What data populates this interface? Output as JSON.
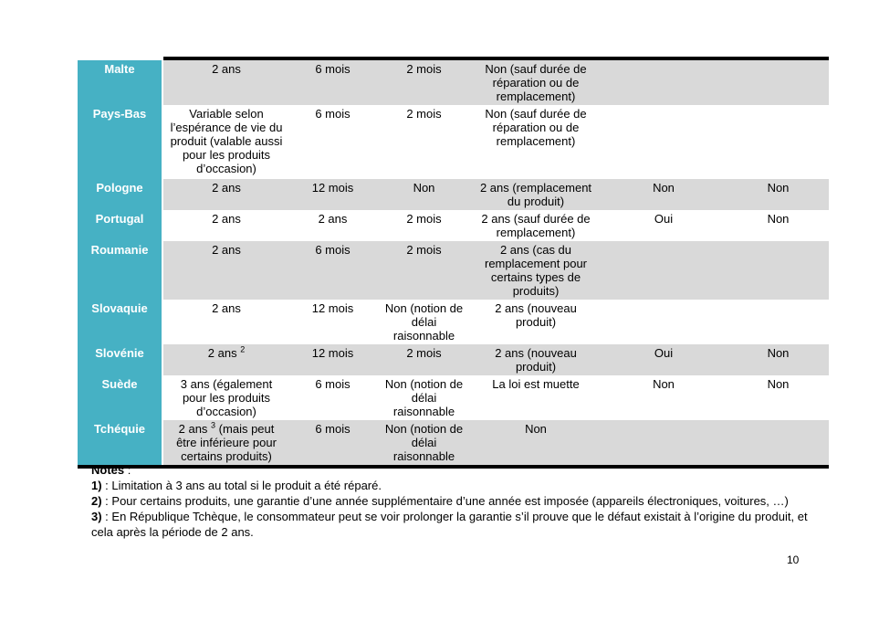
{
  "document": {
    "page_number": "10"
  },
  "colors": {
    "accent_teal": "#46b1c4",
    "row_shade": "#d9d9d9",
    "border": "#000000"
  },
  "table": {
    "rows": [
      {
        "country": "Malte",
        "cells": [
          "2 ans",
          "6 mois",
          "2 mois",
          "Non (sauf durée de réparation ou de remplacement)",
          "",
          ""
        ]
      },
      {
        "country": "Pays-Bas",
        "cells": [
          "Variable selon l’espérance de vie du produit (valable aussi pour les produits d’occasion)",
          "6 mois",
          "2 mois",
          "Non (sauf durée de réparation ou de remplacement)",
          "",
          ""
        ]
      },
      {
        "country": "Pologne",
        "cells": [
          "2 ans",
          "12 mois",
          "Non",
          "2 ans (remplacement du produit)",
          "Non",
          "Non"
        ]
      },
      {
        "country": "Portugal",
        "cells": [
          "2 ans",
          "2 ans",
          "2 mois",
          "2 ans (sauf durée de remplacement)",
          "Oui",
          "Non"
        ]
      },
      {
        "country": "Roumanie",
        "cells": [
          "2 ans",
          "6 mois",
          "2 mois",
          "2 ans (cas du remplacement pour certains types de produits)",
          "",
          ""
        ]
      },
      {
        "country": "Slovaquie",
        "cells": [
          "2 ans",
          "12 mois",
          "Non (notion de délai raisonnable",
          "2 ans (nouveau produit)",
          "",
          ""
        ]
      },
      {
        "country": "Slovénie",
        "cells": [
          "2 ans ^2^",
          "12 mois",
          "2 mois",
          "2 ans (nouveau produit)",
          "Oui",
          "Non"
        ]
      },
      {
        "country": "Suède",
        "cells": [
          "3 ans (également pour les produits d’occasion)",
          "6 mois",
          "Non (notion de délai raisonnable",
          "La loi est muette",
          "Non",
          "Non"
        ]
      },
      {
        "country": "Tchéquie",
        "cells": [
          "2 ans ^3^ (mais peut être inférieure pour certains produits)",
          "6 mois",
          "Non (notion de délai raisonnable",
          "Non",
          "",
          ""
        ]
      }
    ]
  },
  "notes": {
    "title_bold": "Notes",
    "title_rest": " :",
    "items": [
      {
        "label": "1)",
        "text": " : Limitation à 3 ans au total si le produit a été réparé."
      },
      {
        "label": "2)",
        "text": " : Pour certains produits, une garantie d’une année supplémentaire d’une année est imposée (appareils électroniques, voitures, …)"
      },
      {
        "label": "3)",
        "text": " : En République Tchèque, le consommateur peut se voir prolonger la garantie s’il prouve que le défaut existait à l’origine du produit, et cela après la période de 2 ans."
      }
    ]
  }
}
